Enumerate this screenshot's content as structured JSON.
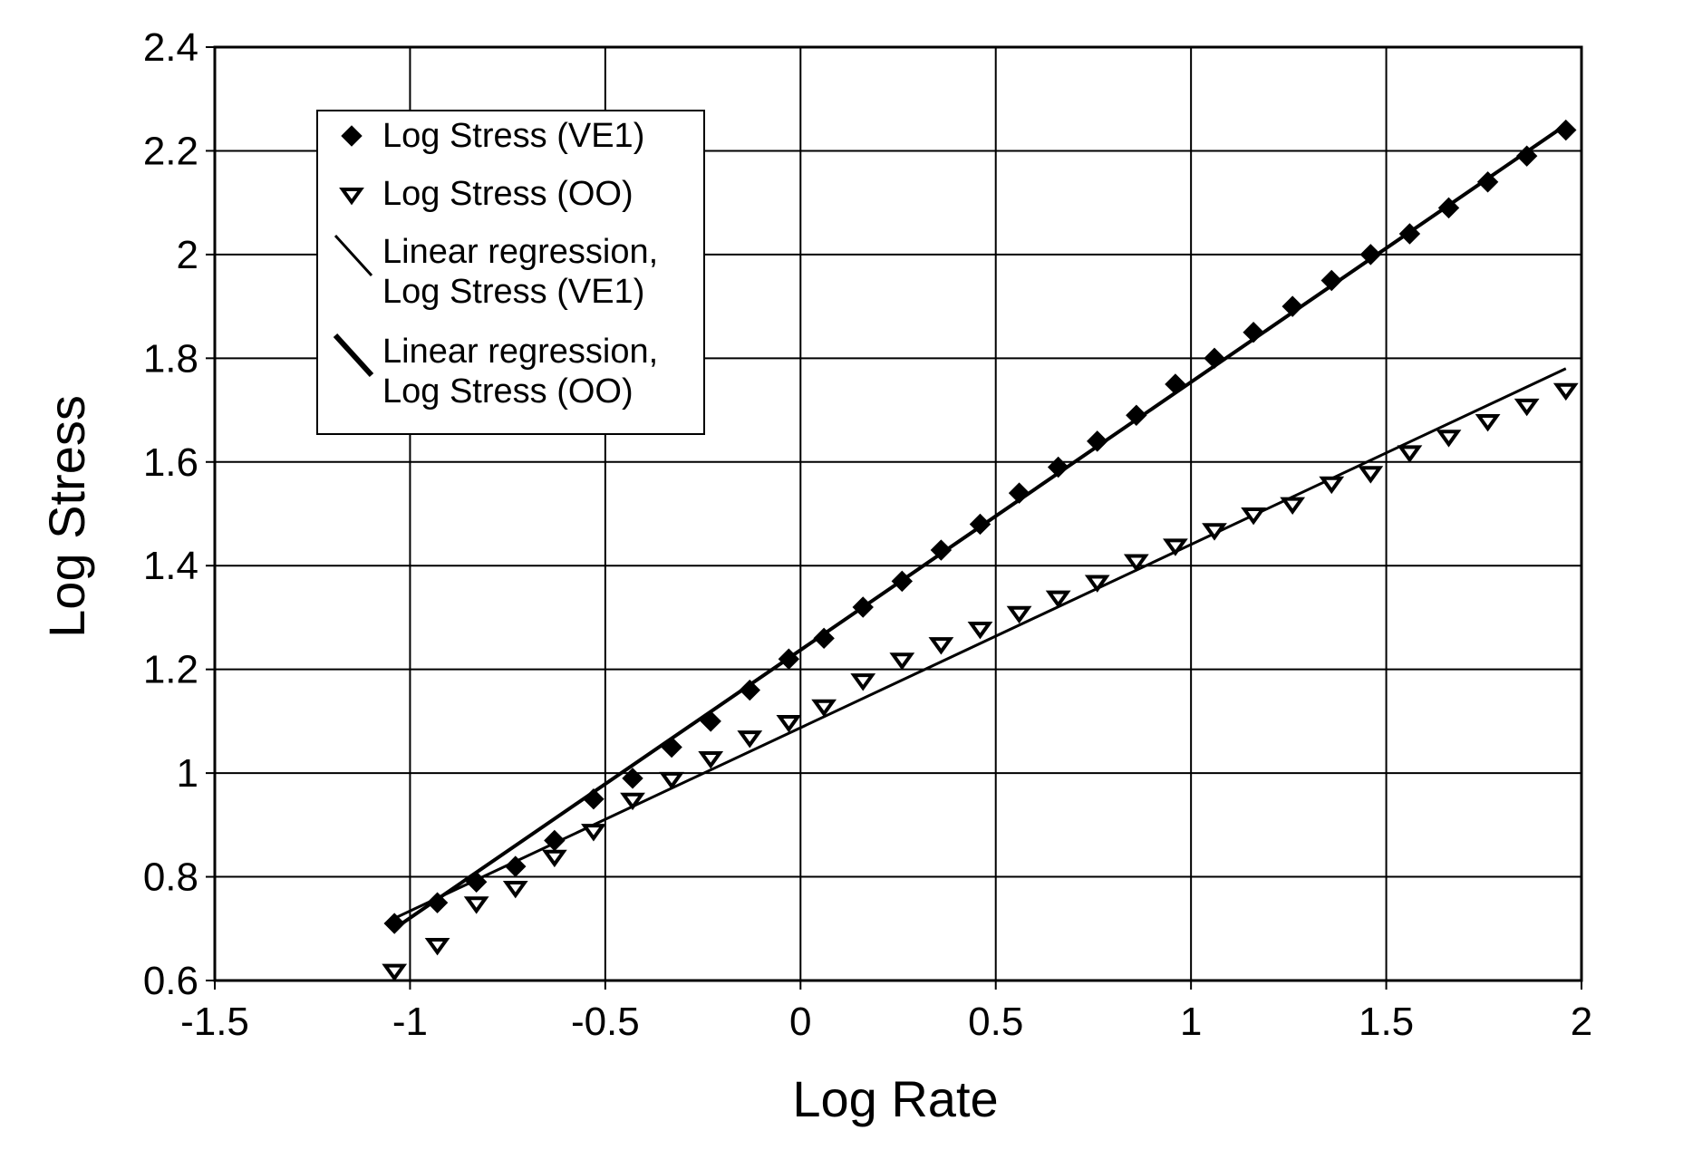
{
  "chart_data": {
    "type": "scatter",
    "title": "",
    "xlabel": "Log Rate",
    "ylabel": "Log Stress",
    "xlim": [
      -1.5,
      2
    ],
    "ylim": [
      0.6,
      2.4
    ],
    "x_ticks": [
      "-1.5",
      "-1",
      "-0.5",
      "0",
      "0.5",
      "1",
      "1.5",
      "2"
    ],
    "y_ticks": [
      "0.6",
      "0.8",
      "1",
      "1.2",
      "1.4",
      "1.6",
      "1.8",
      "2",
      "2.2",
      "2.4"
    ],
    "grid": true,
    "legend_position": "top-left",
    "legend": [
      {
        "label_lines": [
          "Log Stress (VE1)"
        ],
        "marker": "filled-diamond"
      },
      {
        "label_lines": [
          "Log Stress (OO)"
        ],
        "marker": "open-down-triangle"
      },
      {
        "label_lines": [
          "Linear regression,",
          "Log Stress (VE1)"
        ],
        "marker": "line"
      },
      {
        "label_lines": [
          "Linear regression,",
          "Log Stress (OO)"
        ],
        "marker": "line-bold"
      }
    ],
    "series": [
      {
        "name": "Log Stress (VE1)",
        "marker": "filled-diamond",
        "x": [
          -1.04,
          -0.93,
          -0.83,
          -0.73,
          -0.63,
          -0.53,
          -0.43,
          -0.33,
          -0.23,
          -0.13,
          -0.03,
          0.06,
          0.16,
          0.26,
          0.36,
          0.46,
          0.56,
          0.66,
          0.76,
          0.86,
          0.96,
          1.06,
          1.16,
          1.26,
          1.36,
          1.46,
          1.56,
          1.66,
          1.76,
          1.86,
          1.96
        ],
        "y": [
          0.71,
          0.75,
          0.79,
          0.82,
          0.87,
          0.95,
          0.99,
          1.05,
          1.1,
          1.16,
          1.22,
          1.26,
          1.32,
          1.37,
          1.43,
          1.48,
          1.54,
          1.59,
          1.64,
          1.69,
          1.75,
          1.8,
          1.85,
          1.9,
          1.95,
          2.0,
          2.04,
          2.09,
          2.14,
          2.19,
          2.24
        ]
      },
      {
        "name": "Log Stress (OO)",
        "marker": "open-down-triangle",
        "x": [
          -1.04,
          -0.93,
          -0.83,
          -0.73,
          -0.63,
          -0.53,
          -0.43,
          -0.33,
          -0.23,
          -0.13,
          -0.03,
          0.06,
          0.16,
          0.26,
          0.36,
          0.46,
          0.56,
          0.66,
          0.76,
          0.86,
          0.96,
          1.06,
          1.16,
          1.26,
          1.36,
          1.46,
          1.56,
          1.66,
          1.76,
          1.86,
          1.96
        ],
        "y": [
          0.62,
          0.67,
          0.75,
          0.78,
          0.84,
          0.89,
          0.95,
          0.99,
          1.03,
          1.07,
          1.1,
          1.13,
          1.18,
          1.22,
          1.25,
          1.28,
          1.31,
          1.34,
          1.37,
          1.41,
          1.44,
          1.47,
          1.5,
          1.52,
          1.56,
          1.58,
          1.62,
          1.65,
          1.68,
          1.71,
          1.74
        ]
      },
      {
        "name": "Linear regression, Log Stress (VE1)",
        "marker": "line",
        "x": [
          -1.04,
          1.96
        ],
        "y": [
          0.7,
          2.25
        ]
      },
      {
        "name": "Linear regression, Log Stress (OO)",
        "marker": "line",
        "x": [
          -1.04,
          1.96
        ],
        "y": [
          0.72,
          1.78
        ]
      }
    ]
  }
}
